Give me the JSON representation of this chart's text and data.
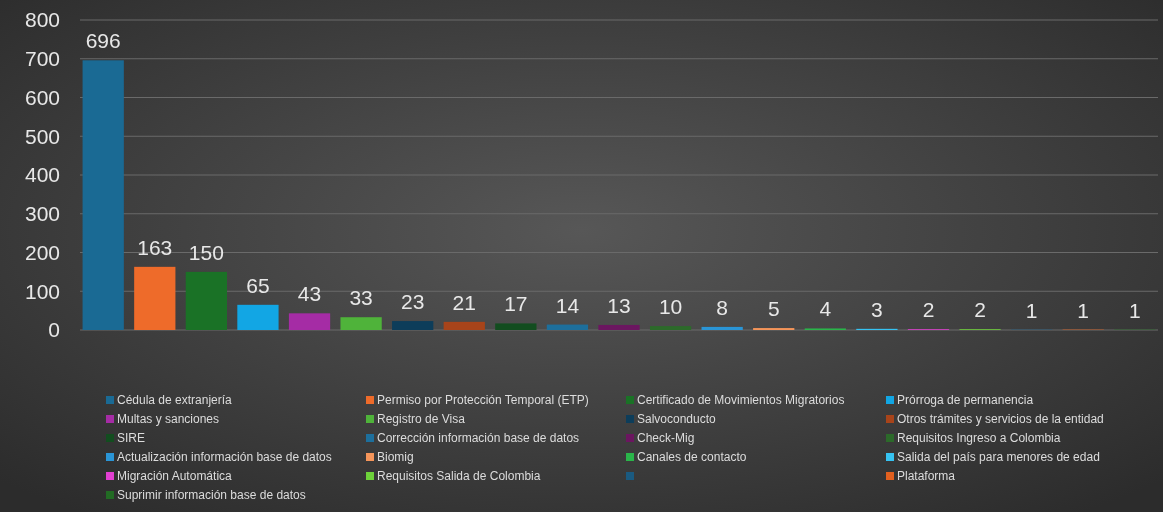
{
  "chart_data": {
    "type": "bar",
    "categories": [
      null,
      null,
      null,
      null,
      null,
      null,
      null,
      null,
      null,
      null,
      null,
      null,
      null,
      null,
      null,
      null,
      null,
      null,
      null,
      null,
      null
    ],
    "series": [
      {
        "name": "Cédula de extranjería",
        "color": "#1a6a94",
        "values": [
          696,
          null,
          null,
          null,
          null,
          null,
          null,
          null,
          null,
          null,
          null,
          null,
          null,
          null,
          null,
          null,
          null,
          null,
          null,
          null,
          null
        ]
      },
      {
        "name": "Permiso por Protección Temporal (ETP)",
        "color": "#ee6b2a",
        "values": [
          null,
          163,
          null,
          null,
          null,
          null,
          null,
          null,
          null,
          null,
          null,
          null,
          null,
          null,
          null,
          null,
          null,
          null,
          null,
          null,
          null
        ]
      },
      {
        "name": "Certificado de Movimientos Migratorios",
        "color": "#1a7226",
        "values": [
          null,
          null,
          150,
          null,
          null,
          null,
          null,
          null,
          null,
          null,
          null,
          null,
          null,
          null,
          null,
          null,
          null,
          null,
          null,
          null,
          null
        ]
      },
      {
        "name": "Prórroga de permanencia",
        "color": "#12a6e4",
        "values": [
          null,
          null,
          null,
          65,
          null,
          null,
          null,
          null,
          null,
          null,
          null,
          null,
          null,
          null,
          null,
          null,
          null,
          null,
          null,
          null,
          null
        ]
      },
      {
        "name": "Multas y sanciones",
        "color": "#a52ca5",
        "values": [
          null,
          null,
          null,
          null,
          43,
          null,
          null,
          null,
          null,
          null,
          null,
          null,
          null,
          null,
          null,
          null,
          null,
          null,
          null,
          null,
          null
        ]
      },
      {
        "name": "Registro de Visa",
        "color": "#4fb33a",
        "values": [
          null,
          null,
          null,
          null,
          null,
          33,
          null,
          null,
          null,
          null,
          null,
          null,
          null,
          null,
          null,
          null,
          null,
          null,
          null,
          null,
          null
        ]
      },
      {
        "name": "Salvoconducto",
        "color": "#0d3d5a",
        "values": [
          null,
          null,
          null,
          null,
          null,
          null,
          23,
          null,
          null,
          null,
          null,
          null,
          null,
          null,
          null,
          null,
          null,
          null,
          null,
          null,
          null
        ]
      },
      {
        "name": "Otros trámites y servicios de la entidad",
        "color": "#a8441a",
        "values": [
          null,
          null,
          null,
          null,
          null,
          null,
          null,
          21,
          null,
          null,
          null,
          null,
          null,
          null,
          null,
          null,
          null,
          null,
          null,
          null,
          null
        ]
      },
      {
        "name": "SIRE",
        "color": "#124d1f",
        "values": [
          null,
          null,
          null,
          null,
          null,
          null,
          null,
          null,
          17,
          null,
          null,
          null,
          null,
          null,
          null,
          null,
          null,
          null,
          null,
          null,
          null
        ]
      },
      {
        "name": "Corrección información base de datos",
        "color": "#1d6f9c",
        "values": [
          null,
          null,
          null,
          null,
          null,
          null,
          null,
          null,
          null,
          14,
          null,
          null,
          null,
          null,
          null,
          null,
          null,
          null,
          null,
          null,
          null
        ]
      },
      {
        "name": "Check-Mig",
        "color": "#6b1660",
        "values": [
          null,
          null,
          null,
          null,
          null,
          null,
          null,
          null,
          null,
          null,
          13,
          null,
          null,
          null,
          null,
          null,
          null,
          null,
          null,
          null,
          null
        ]
      },
      {
        "name": "Requisitos Ingreso a Colombia",
        "color": "#2c6a2a",
        "values": [
          null,
          null,
          null,
          null,
          null,
          null,
          null,
          null,
          null,
          null,
          null,
          10,
          null,
          null,
          null,
          null,
          null,
          null,
          null,
          null,
          null
        ]
      },
      {
        "name": "Actualización información base de datos",
        "color": "#2a95d6",
        "values": [
          null,
          null,
          null,
          null,
          null,
          null,
          null,
          null,
          null,
          null,
          null,
          null,
          8,
          null,
          null,
          null,
          null,
          null,
          null,
          null,
          null
        ]
      },
      {
        "name": "Biomig",
        "color": "#f5955a",
        "values": [
          null,
          null,
          null,
          null,
          null,
          null,
          null,
          null,
          null,
          null,
          null,
          null,
          null,
          5,
          null,
          null,
          null,
          null,
          null,
          null,
          null
        ]
      },
      {
        "name": "Canales de contacto",
        "color": "#2ab54a",
        "values": [
          null,
          null,
          null,
          null,
          null,
          null,
          null,
          null,
          null,
          null,
          null,
          null,
          null,
          null,
          4,
          null,
          null,
          null,
          null,
          null,
          null
        ]
      },
      {
        "name": "Salida del país para menores de edad",
        "color": "#36c3f2",
        "values": [
          null,
          null,
          null,
          null,
          null,
          null,
          null,
          null,
          null,
          null,
          null,
          null,
          null,
          null,
          null,
          3,
          null,
          null,
          null,
          null,
          null
        ]
      },
      {
        "name": "Migración Automática",
        "color": "#e23fd2",
        "values": [
          null,
          null,
          null,
          null,
          null,
          null,
          null,
          null,
          null,
          null,
          null,
          null,
          null,
          null,
          null,
          null,
          2,
          null,
          null,
          null,
          null
        ]
      },
      {
        "name": "Requisitos Salida de Colombia",
        "color": "#6ed23a",
        "values": [
          null,
          null,
          null,
          null,
          null,
          null,
          null,
          null,
          null,
          null,
          null,
          null,
          null,
          null,
          null,
          null,
          null,
          2,
          null,
          null,
          null
        ]
      },
      {
        "color": "#1a5a80",
        "values": [
          null,
          null,
          null,
          null,
          null,
          null,
          null,
          null,
          null,
          null,
          null,
          null,
          null,
          null,
          null,
          null,
          null,
          null,
          1,
          null,
          null
        ]
      },
      {
        "name": "Plataforma",
        "color": "#e2601f",
        "values": [
          null,
          null,
          null,
          null,
          null,
          null,
          null,
          null,
          null,
          null,
          null,
          null,
          null,
          null,
          null,
          null,
          null,
          null,
          null,
          1,
          null
        ]
      },
      {
        "name": "Suprimir información base de datos",
        "color": "#226b24",
        "values": [
          null,
          null,
          null,
          null,
          null,
          null,
          null,
          null,
          null,
          null,
          null,
          null,
          null,
          null,
          null,
          null,
          null,
          null,
          null,
          null,
          1
        ]
      }
    ],
    "stacked": true,
    "ylim": [
      0,
      800
    ],
    "yticks": [
      0,
      100,
      200,
      300,
      400,
      500,
      600,
      700,
      800
    ],
    "grid": "y",
    "tick_labels": "y",
    "data_labels": true,
    "legend": "bottom"
  }
}
